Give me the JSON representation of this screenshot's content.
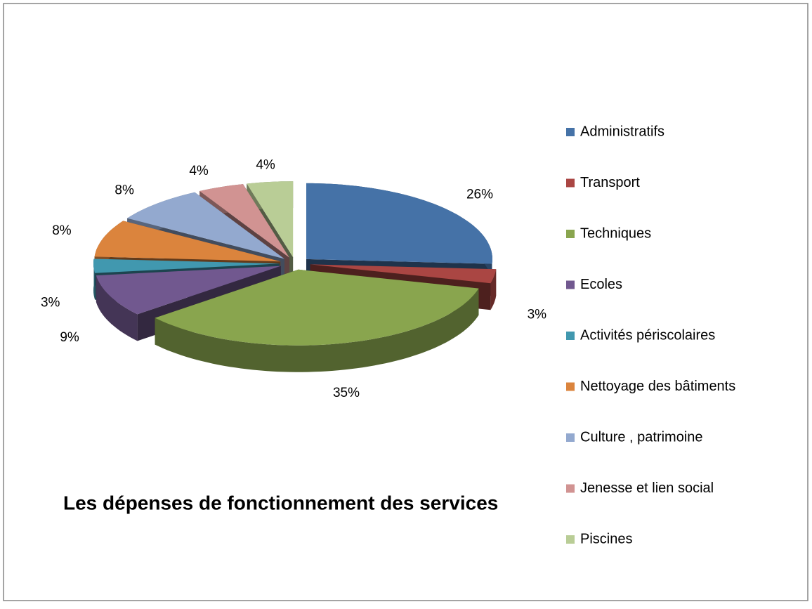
{
  "chart_data": {
    "type": "pie",
    "title": "Les dépenses de fonctionnement des services",
    "categories": [
      "Administratifs",
      "Transport",
      "Techniques",
      "Ecoles",
      "Activités périscolaires",
      "Nettoyage des bâtiments",
      "Culture , patrimoine",
      "Jenesse et lien social",
      "Piscines"
    ],
    "values": [
      26,
      3,
      35,
      9,
      3,
      8,
      8,
      4,
      4
    ],
    "value_labels": [
      "26%",
      "3%",
      "35%",
      "9%",
      "3%",
      "8%",
      "8%",
      "4%",
      "4%"
    ],
    "colors": [
      "#4572a7",
      "#aa4643",
      "#89a54e",
      "#71588f",
      "#4198af",
      "#db843d",
      "#93a9cf",
      "#d19392",
      "#b9cd96"
    ],
    "legend": "right"
  }
}
